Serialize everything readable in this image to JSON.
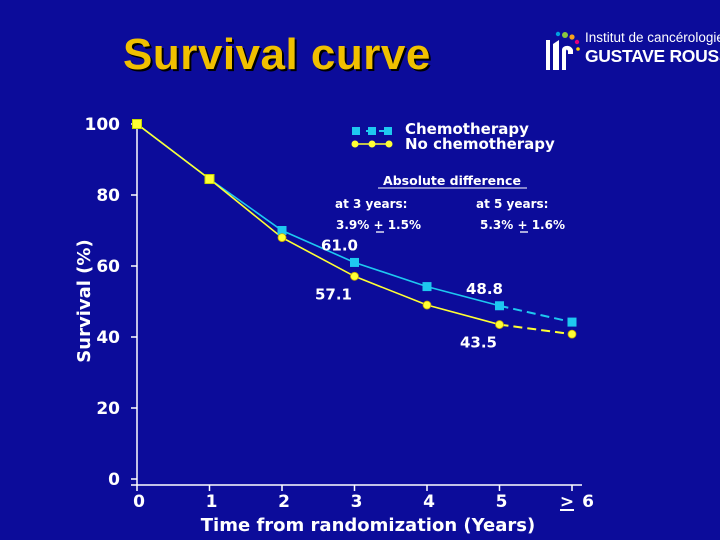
{
  "title": "Survival curve",
  "logo": {
    "line1": "Institut de cancérologie",
    "line2": "GUSTAVE ROUSSY"
  },
  "colors": {
    "background": "#0c0c9a",
    "title": "#f0c000",
    "chemotherapy": "#1ec8f0",
    "no_chemotherapy": "#ffff33"
  },
  "chart_data": {
    "type": "line",
    "xlabel": "Time from randomization (Years)",
    "ylabel": "Survival (%)",
    "xlim": [
      0,
      6
    ],
    "ylim": [
      0,
      100
    ],
    "x_ticks": [
      0,
      1,
      2,
      3,
      4,
      5,
      6
    ],
    "x_tick_labels": [
      "0",
      "1",
      "2",
      "3",
      "4",
      "5",
      "> 6"
    ],
    "y_ticks": [
      0,
      20,
      40,
      60,
      80,
      100
    ],
    "y_tick_labels": [
      "0",
      "20",
      "40",
      "60",
      "80",
      "100"
    ],
    "series": [
      {
        "name": "Chemotherapy",
        "x": [
          0,
          1,
          2,
          3,
          4,
          5,
          6
        ],
        "values": [
          100,
          84.5,
          70.0,
          61.0,
          54.2,
          48.8,
          44.2
        ],
        "dashed_from_index": 5
      },
      {
        "name": "No chemotherapy",
        "x": [
          0,
          1,
          2,
          3,
          4,
          5,
          6
        ],
        "values": [
          100,
          84.5,
          68.0,
          57.1,
          49.0,
          43.5,
          40.8
        ],
        "dashed_from_index": 5
      }
    ],
    "value_labels": [
      {
        "text": "61.0",
        "series": "Chemotherapy",
        "x": 3
      },
      {
        "text": "57.1",
        "series": "No chemotherapy",
        "x": 3
      },
      {
        "text": "48.8",
        "series": "Chemotherapy",
        "x": 5
      },
      {
        "text": "43.5",
        "series": "No chemotherapy",
        "x": 5
      }
    ],
    "annotation": {
      "title": "Absolute difference",
      "at3_label": "at 3 years:",
      "at3_value": "3.9% + 1.5%",
      "at5_label": "at 5 years:",
      "at5_value": "5.3% + 1.6%"
    },
    "legend_position": "top-right"
  }
}
